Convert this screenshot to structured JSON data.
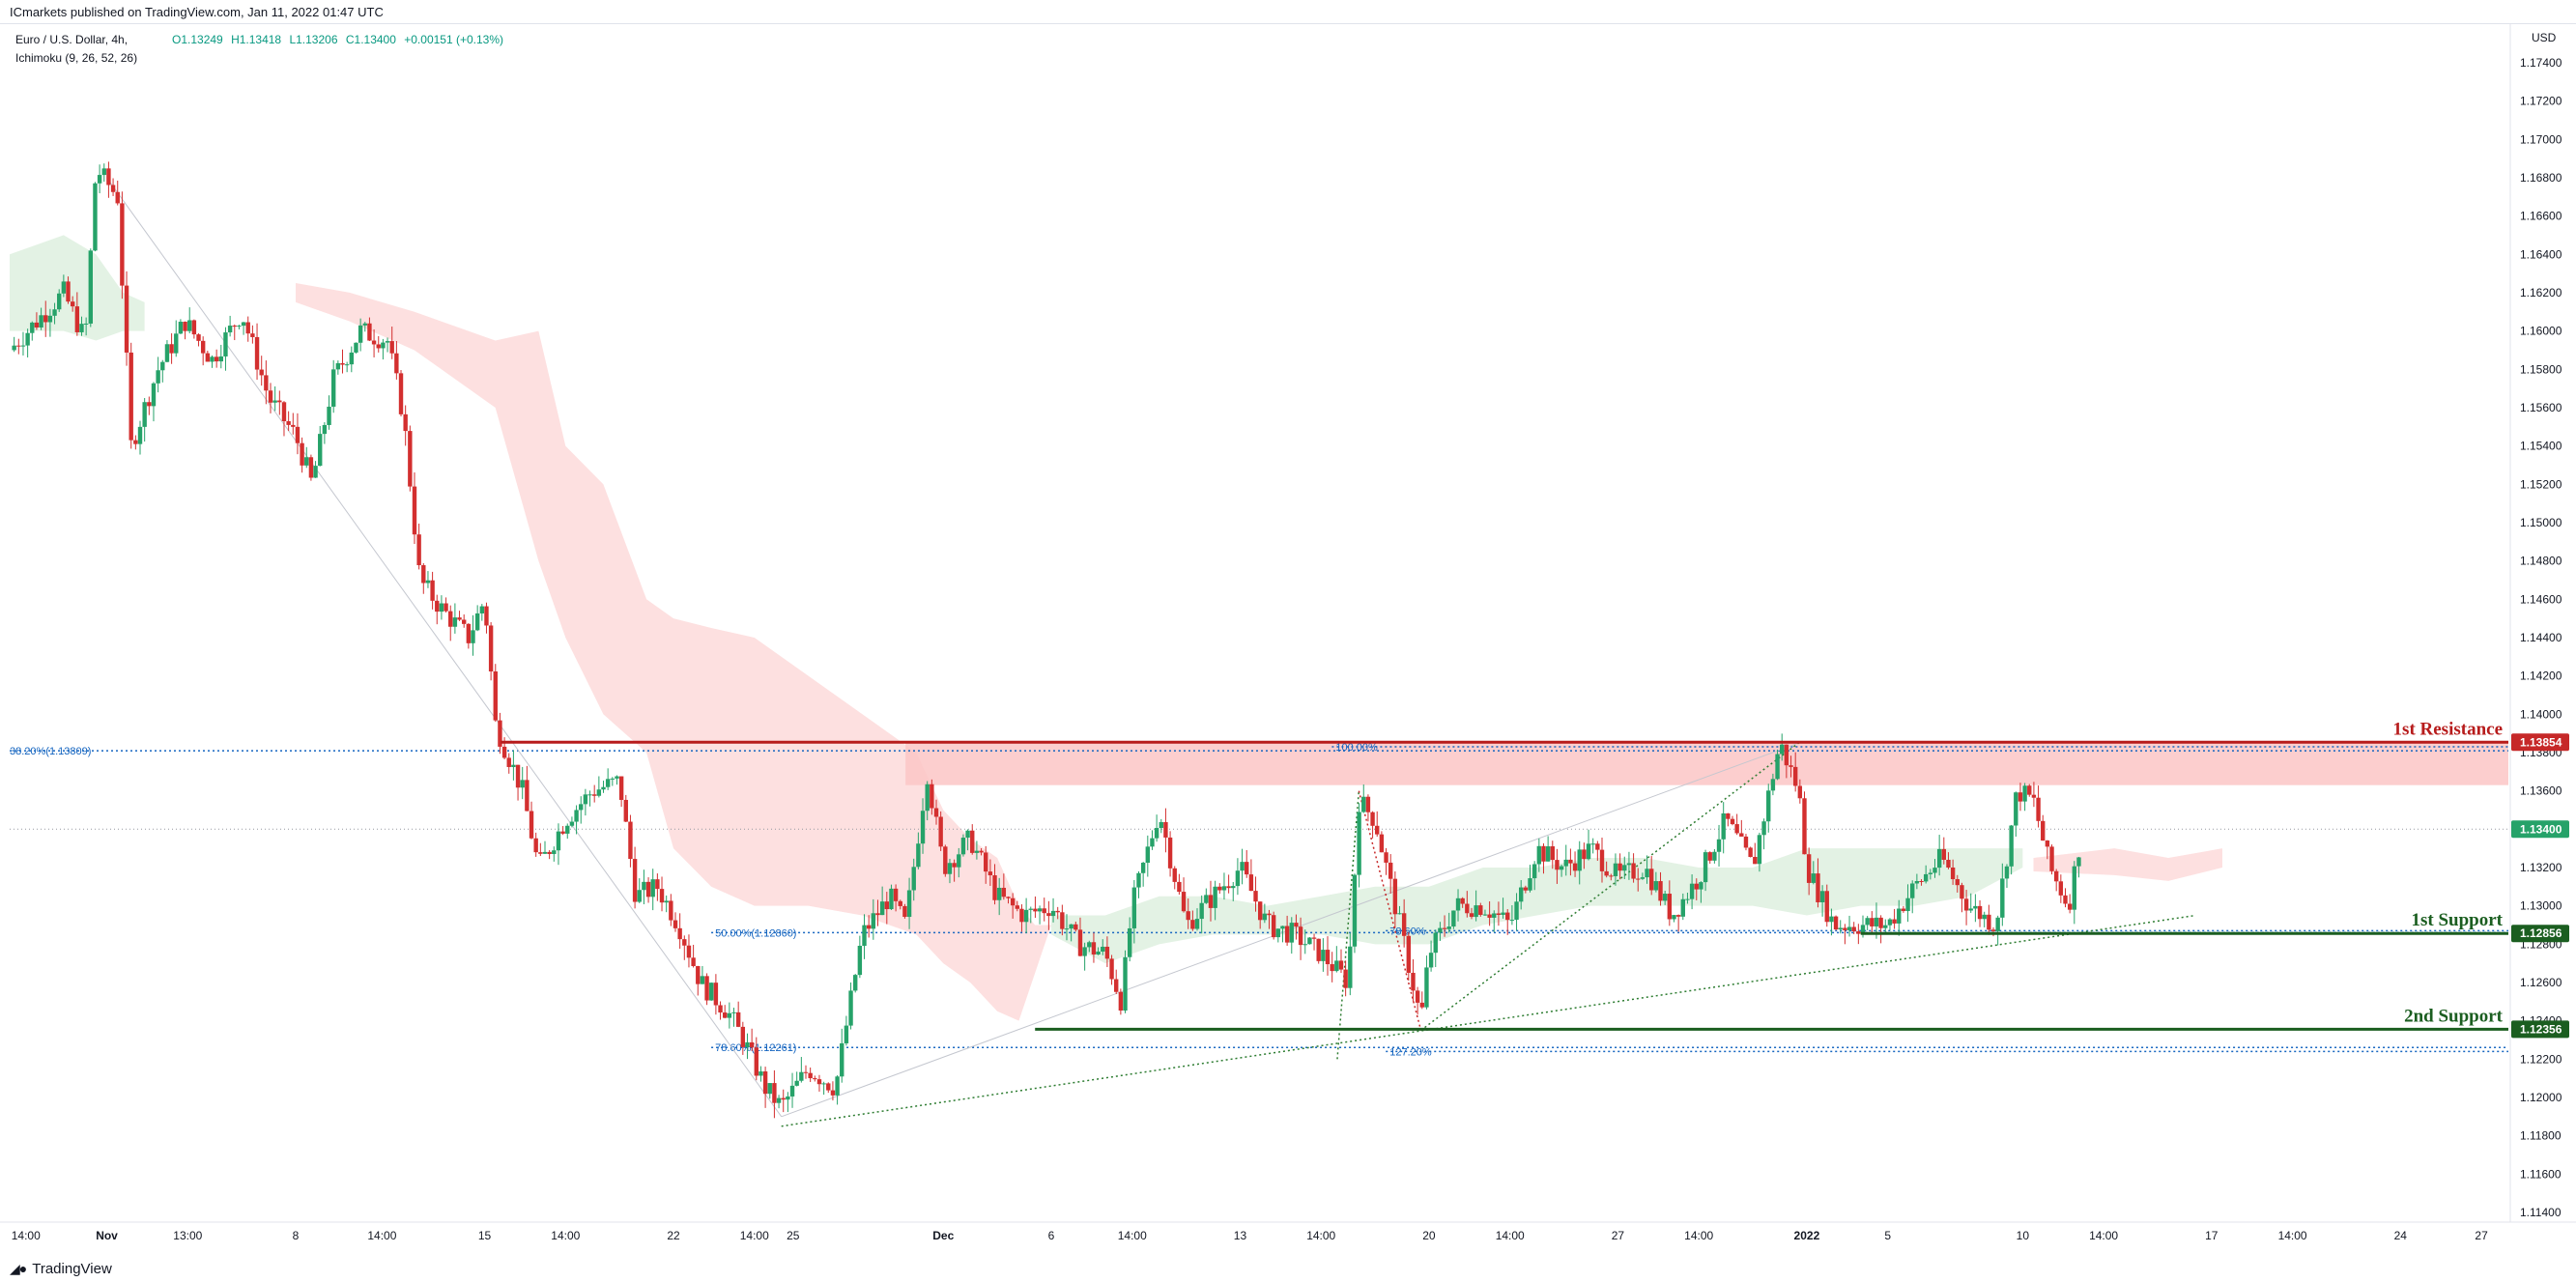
{
  "header": {
    "publisher": "ICmarkets published on TradingView.com, Jan 11, 2022 01:47 UTC"
  },
  "legend": {
    "symbol": "Euro / U.S. Dollar, 4h,",
    "indicator": "Ichimoku (9, 26, 52, 26)",
    "open": "O1.13249",
    "high": "H1.13418",
    "low": "L1.13206",
    "close": "C1.13400",
    "change": "+0.00151 (+0.13%)"
  },
  "footer": {
    "brand": "TradingView",
    "logo_icon": "tradingview-logo-icon"
  },
  "chart_data": {
    "type": "candlestick",
    "currency": "USD",
    "interval": "4h",
    "ylim": [
      1.114,
      1.1745
    ],
    "yticks": [
      "1.17400",
      "1.17200",
      "1.17000",
      "1.16800",
      "1.16600",
      "1.16400",
      "1.16200",
      "1.16000",
      "1.15800",
      "1.15600",
      "1.15400",
      "1.15200",
      "1.15000",
      "1.14800",
      "1.14600",
      "1.14400",
      "1.14200",
      "1.14000",
      "1.13800",
      "1.13600",
      "1.13400",
      "1.13200",
      "1.13000",
      "1.12800",
      "1.12600",
      "1.12400",
      "1.12200",
      "1.12000",
      "1.11800",
      "1.11600",
      "1.11400"
    ],
    "xticks": [
      {
        "label": "14:00",
        "day": 0.6
      },
      {
        "label": "Nov",
        "day": 3.6
      },
      {
        "label": "13:00",
        "day": 6.6
      },
      {
        "label": "8",
        "day": 10.6
      },
      {
        "label": "14:00",
        "day": 13.8
      },
      {
        "label": "15",
        "day": 17.6
      },
      {
        "label": "14:00",
        "day": 20.6
      },
      {
        "label": "22",
        "day": 24.6
      },
      {
        "label": "14:00",
        "day": 27.6
      },
      {
        "label": "25",
        "day": 27.6
      },
      {
        "label": "Dec",
        "day": 34.6
      },
      {
        "label": "6",
        "day": 38.6
      },
      {
        "label": "14:00",
        "day": 41.6
      },
      {
        "label": "13",
        "day": 45.6
      },
      {
        "label": "14:00",
        "day": 48.6
      },
      {
        "label": "20",
        "day": 52.6
      },
      {
        "label": "14:00",
        "day": 55.6
      },
      {
        "label": "27",
        "day": 59.6
      },
      {
        "label": "14:00",
        "day": 62.6
      },
      {
        "label": "2022",
        "day": 66.6
      },
      {
        "label": "5",
        "day": 69.6
      },
      {
        "label": "10",
        "day": 74.6
      },
      {
        "label": "14:00",
        "day": 77.6
      },
      {
        "label": "17",
        "day": 81.6
      },
      {
        "label": "14:00",
        "day": 84.6
      },
      {
        "label": "24",
        "day": 88.6
      },
      {
        "label": "27",
        "day": 91.6
      }
    ],
    "price_path": [
      [
        0,
        1.159
      ],
      [
        1,
        1.1605
      ],
      [
        2,
        1.162
      ],
      [
        2.8,
        1.1595
      ],
      [
        3.2,
        1.1685
      ],
      [
        4,
        1.167
      ],
      [
        4.5,
        1.154
      ],
      [
        5.5,
        1.158
      ],
      [
        6.5,
        1.1605
      ],
      [
        7.5,
        1.1585
      ],
      [
        8.6,
        1.161
      ],
      [
        9.6,
        1.1565
      ],
      [
        10.6,
        1.1545
      ],
      [
        11.2,
        1.152
      ],
      [
        12,
        1.1575
      ],
      [
        13,
        1.16
      ],
      [
        14,
        1.1595
      ],
      [
        14.6,
        1.1555
      ],
      [
        15.2,
        1.147
      ],
      [
        16,
        1.1455
      ],
      [
        17,
        1.144
      ],
      [
        17.6,
        1.146
      ],
      [
        18,
        1.1395
      ],
      [
        19,
        1.136
      ],
      [
        19.6,
        1.132
      ],
      [
        20.6,
        1.1345
      ],
      [
        21.6,
        1.136
      ],
      [
        22.6,
        1.1365
      ],
      [
        23.2,
        1.1305
      ],
      [
        24,
        1.131
      ],
      [
        24.8,
        1.129
      ],
      [
        25.6,
        1.126
      ],
      [
        26.6,
        1.1245
      ],
      [
        27.2,
        1.123
      ],
      [
        28,
        1.1205
      ],
      [
        28.6,
        1.1195
      ],
      [
        29.6,
        1.1215
      ],
      [
        30.6,
        1.1205
      ],
      [
        31.6,
        1.1285
      ],
      [
        32.6,
        1.1305
      ],
      [
        33.2,
        1.129
      ],
      [
        34.0,
        1.137
      ],
      [
        34.6,
        1.132
      ],
      [
        35.6,
        1.1335
      ],
      [
        36.6,
        1.1305
      ],
      [
        37.6,
        1.1295
      ],
      [
        38.6,
        1.13
      ],
      [
        39.6,
        1.128
      ],
      [
        40.6,
        1.1275
      ],
      [
        41.2,
        1.125
      ],
      [
        41.6,
        1.13
      ],
      [
        42.6,
        1.135
      ],
      [
        43.6,
        1.129
      ],
      [
        44.6,
        1.1305
      ],
      [
        45.6,
        1.132
      ],
      [
        46.6,
        1.129
      ],
      [
        47.6,
        1.1285
      ],
      [
        48.6,
        1.1275
      ],
      [
        49.6,
        1.126
      ],
      [
        50,
        1.1355
      ],
      [
        50.6,
        1.1345
      ],
      [
        51.6,
        1.1285
      ],
      [
        52.3,
        1.124
      ],
      [
        52.6,
        1.1275
      ],
      [
        53.6,
        1.13
      ],
      [
        54.6,
        1.13
      ],
      [
        55.6,
        1.129
      ],
      [
        56.6,
        1.133
      ],
      [
        57.6,
        1.132
      ],
      [
        58.6,
        1.133
      ],
      [
        59.6,
        1.1315
      ],
      [
        60.6,
        1.132
      ],
      [
        61.6,
        1.1295
      ],
      [
        62.6,
        1.1315
      ],
      [
        63.6,
        1.1345
      ],
      [
        64.6,
        1.132
      ],
      [
        65.6,
        1.1385
      ],
      [
        66.3,
        1.136
      ],
      [
        66.6,
        1.132
      ],
      [
        67.6,
        1.129
      ],
      [
        68.6,
        1.129
      ],
      [
        69.6,
        1.129
      ],
      [
        70.6,
        1.131
      ],
      [
        71.6,
        1.1325
      ],
      [
        72.6,
        1.13
      ],
      [
        73.6,
        1.129
      ],
      [
        74.4,
        1.136
      ],
      [
        75.0,
        1.1355
      ],
      [
        75.6,
        1.132
      ],
      [
        76.3,
        1.13
      ],
      [
        76.8,
        1.134
      ]
    ],
    "ichimoku_cloud_bearish": [
      [
        10.6,
        1.1625,
        1.1615
      ],
      [
        12.6,
        1.162,
        1.1605
      ],
      [
        15,
        1.161,
        1.159
      ],
      [
        18,
        1.1595,
        1.156
      ],
      [
        19.6,
        1.16,
        1.148
      ],
      [
        20.6,
        1.154,
        1.144
      ],
      [
        22,
        1.152,
        1.14
      ],
      [
        23.6,
        1.146,
        1.138
      ],
      [
        24.6,
        1.145,
        1.133
      ],
      [
        26,
        1.1445,
        1.131
      ],
      [
        27.6,
        1.144,
        1.13
      ],
      [
        29.6,
        1.142,
        1.13
      ],
      [
        31.6,
        1.14,
        1.1295
      ],
      [
        32.6,
        1.139,
        1.129
      ],
      [
        33.6,
        1.138,
        1.1285
      ],
      [
        34.6,
        1.135,
        1.127
      ],
      [
        35.6,
        1.1335,
        1.126
      ],
      [
        36.6,
        1.1325,
        1.1245
      ],
      [
        37.4,
        1.13,
        1.124
      ],
      [
        38.0,
        1.129,
        1.1265
      ],
      [
        38.6,
        1.129,
        1.129
      ]
    ],
    "ichimoku_cloud_bullish": [
      [
        0,
        1.164,
        1.16
      ],
      [
        2,
        1.165,
        1.16
      ],
      [
        3.2,
        1.164,
        1.1595
      ],
      [
        4.2,
        1.162,
        1.16
      ],
      [
        5.0,
        1.1615,
        1.16
      ],
      [
        38.6,
        1.1295,
        1.1285
      ],
      [
        40.6,
        1.1295,
        1.127
      ],
      [
        42.6,
        1.1305,
        1.128
      ],
      [
        44.6,
        1.1305,
        1.1285
      ],
      [
        46.6,
        1.13,
        1.1285
      ],
      [
        48.6,
        1.1305,
        1.1285
      ],
      [
        50.6,
        1.131,
        1.128
      ],
      [
        52.6,
        1.131,
        1.128
      ],
      [
        54.6,
        1.132,
        1.129
      ],
      [
        56.6,
        1.132,
        1.1295
      ],
      [
        58.6,
        1.1325,
        1.13
      ],
      [
        60.6,
        1.1325,
        1.13
      ],
      [
        62.6,
        1.132,
        1.13
      ],
      [
        64.6,
        1.132,
        1.13
      ],
      [
        66.6,
        1.133,
        1.1295
      ],
      [
        68.6,
        1.133,
        1.13
      ],
      [
        70.6,
        1.133,
        1.13
      ],
      [
        72.6,
        1.133,
        1.1305
      ],
      [
        74.6,
        1.133,
        1.132
      ]
    ],
    "ichimoku_cloud_bearish_future": [
      [
        75,
        1.1325,
        1.1318
      ],
      [
        78,
        1.133,
        1.1316
      ],
      [
        80,
        1.1325,
        1.1313
      ],
      [
        82,
        1.133,
        1.132
      ]
    ],
    "resistance_zone": {
      "day_start": 33.2,
      "high": 1.13854,
      "low": 1.1363
    },
    "resistance_line": {
      "day_start": 18.2,
      "price": 1.13854
    },
    "support_lines": [
      {
        "day_start": 68.6,
        "price": 1.12856
      },
      {
        "day_start": 38.0,
        "price": 1.12356
      }
    ],
    "fib_levels": [
      {
        "label": "38.20%(1.13809)",
        "price": 1.13809,
        "day_start": 0
      },
      {
        "label": "50.00%(1.12860)",
        "price": 1.1286,
        "day_start": 26.0
      },
      {
        "label": "78.60%(1.12261)",
        "price": 1.12261,
        "day_start": 26.0
      },
      {
        "label": "100.00%",
        "price": 1.1383,
        "day_start": 49.0
      },
      {
        "label": "78.60%",
        "price": 1.1287,
        "day_start": 51.0
      },
      {
        "label": "127.20%",
        "price": 1.1224,
        "day_start": 51.0
      }
    ],
    "trendlines": [
      {
        "from": [
          3.6,
          1.168
        ],
        "to": [
          28.6,
          1.119
        ],
        "style": "solid-gray"
      },
      {
        "from": [
          28.6,
          1.119
        ],
        "to": [
          66.3,
          1.1385
        ],
        "style": "solid-gray"
      },
      {
        "from": [
          28.6,
          1.1185
        ],
        "to": [
          81.0,
          1.1295
        ],
        "style": "dotted-green"
      },
      {
        "from": [
          52.3,
          1.1235
        ],
        "to": [
          66.3,
          1.1385
        ],
        "style": "dotted-green"
      },
      {
        "from": [
          49.2,
          1.122
        ],
        "to": [
          50.0,
          1.136
        ],
        "style": "dotted-green"
      },
      {
        "from": [
          50.0,
          1.136
        ],
        "to": [
          52.3,
          1.1235
        ],
        "style": "dotted-red"
      }
    ],
    "current_price_line": 1.134,
    "annotations": [
      {
        "text": "1st Resistance",
        "price": 1.13854,
        "color": "#b71c1c"
      },
      {
        "text": "1st Support",
        "price": 1.12856,
        "color": "#1b5e20"
      },
      {
        "text": "2nd Support",
        "price": 1.12356,
        "color": "#1b5e20"
      }
    ],
    "price_labels": [
      {
        "text": "1.13854",
        "price": 1.13854,
        "color": "#c62828"
      },
      {
        "text": "1.13400",
        "price": 1.134,
        "color": "#26a269"
      },
      {
        "text": "1.12856",
        "price": 1.12856,
        "color": "#1b5e20"
      },
      {
        "text": "1.12356",
        "price": 1.12356,
        "color": "#1b5e20"
      }
    ],
    "colors": {
      "up": "#26a269",
      "down": "#d32f2f",
      "fib": "#1565c0",
      "resistance_zone": "#fcc5c5"
    }
  }
}
